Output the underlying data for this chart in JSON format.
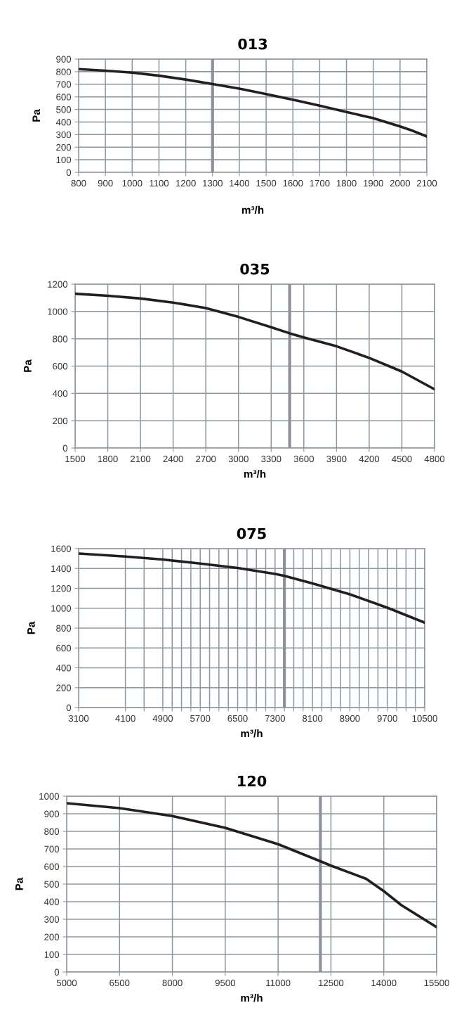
{
  "chart_data": [
    {
      "type": "line",
      "title": "013",
      "xlabel": "m³/h",
      "ylabel": "Pa",
      "grid": true,
      "x": [
        800,
        900,
        1000,
        1100,
        1200,
        1300,
        1400,
        1500,
        1600,
        1700,
        1800,
        1900,
        2000,
        2050,
        2100
      ],
      "series": [
        {
          "color": "#231f20",
          "values": [
            820,
            808,
            792,
            768,
            737,
            702,
            665,
            622,
            577,
            530,
            480,
            430,
            365,
            328,
            285
          ]
        }
      ],
      "xlim": [
        800,
        2100
      ],
      "xticks": [
        800,
        900,
        1000,
        1100,
        1200,
        1300,
        1400,
        1500,
        1600,
        1700,
        1800,
        1900,
        2000,
        2100
      ],
      "ylim": [
        0,
        900
      ],
      "yticks": [
        0,
        100,
        200,
        300,
        400,
        500,
        600,
        700,
        800,
        900
      ],
      "ref_lines": [
        {
          "axis": "x",
          "value": 1300,
          "color": "#8c9199"
        }
      ]
    },
    {
      "type": "line",
      "title": "035",
      "xlabel": "m³/h",
      "ylabel": "Pa",
      "grid": true,
      "x": [
        1500,
        1800,
        2100,
        2400,
        2700,
        3000,
        3300,
        3470,
        3600,
        3900,
        4200,
        4500,
        4800
      ],
      "series": [
        {
          "color": "#231f20",
          "values": [
            1130,
            1115,
            1095,
            1065,
            1025,
            960,
            885,
            840,
            810,
            745,
            660,
            560,
            430
          ]
        }
      ],
      "xlim": [
        1500,
        4800
      ],
      "xticks": [
        1500,
        1800,
        2100,
        2400,
        2700,
        3000,
        3300,
        3600,
        3900,
        4200,
        4500,
        4800
      ],
      "ylim": [
        0,
        1200
      ],
      "yticks": [
        0,
        200,
        400,
        600,
        800,
        1000,
        1200
      ],
      "ref_lines": [
        {
          "axis": "x",
          "value": 3470,
          "color": "#8c9199"
        }
      ]
    },
    {
      "type": "line",
      "title": "075",
      "xlabel": "m³/h",
      "ylabel": "Pa",
      "grid": true,
      "x": [
        3100,
        4100,
        4900,
        5700,
        6500,
        7300,
        7500,
        8100,
        8900,
        9700,
        10500
      ],
      "series": [
        {
          "color": "#231f20",
          "values": [
            1550,
            1520,
            1490,
            1450,
            1405,
            1345,
            1325,
            1250,
            1140,
            1005,
            855
          ]
        }
      ],
      "xlim": [
        3100,
        10500
      ],
      "xticks": [
        3100,
        4100,
        {
          "value": 4500,
          "label": null
        },
        4900,
        {
          "value": 5100,
          "label": null
        },
        {
          "value": 5300,
          "label": null
        },
        {
          "value": 5500,
          "label": null
        },
        5700,
        {
          "value": 5900,
          "label": null
        },
        {
          "value": 6100,
          "label": null
        },
        {
          "value": 6300,
          "label": null
        },
        6500,
        {
          "value": 6700,
          "label": null
        },
        {
          "value": 6900,
          "label": null
        },
        {
          "value": 7100,
          "label": null
        },
        7300,
        {
          "value": 7500,
          "label": null
        },
        {
          "value": 7700,
          "label": null
        },
        {
          "value": 7900,
          "label": null
        },
        8100,
        {
          "value": 8300,
          "label": null
        },
        {
          "value": 8500,
          "label": null
        },
        {
          "value": 8700,
          "label": null
        },
        8900,
        {
          "value": 9100,
          "label": null
        },
        {
          "value": 9300,
          "label": null
        },
        {
          "value": 9500,
          "label": null
        },
        9700,
        {
          "value": 9900,
          "label": null
        },
        {
          "value": 10100,
          "label": null
        },
        {
          "value": 10300,
          "label": null
        },
        10500
      ],
      "ylim": [
        0,
        1600
      ],
      "yticks": [
        0,
        200,
        400,
        600,
        800,
        1000,
        1200,
        1400,
        1600
      ],
      "ref_lines": [
        {
          "axis": "x",
          "value": 7500,
          "color": "#8c9199"
        }
      ]
    },
    {
      "type": "line",
      "title": "120",
      "xlabel": "m³/h",
      "ylabel": "Pa",
      "grid": true,
      "x": [
        5000,
        6500,
        8000,
        9500,
        11000,
        12200,
        12500,
        13500,
        14000,
        14500,
        15500
      ],
      "series": [
        {
          "color": "#231f20",
          "values": [
            960,
            932,
            887,
            820,
            727,
            630,
            605,
            530,
            460,
            380,
            255
          ]
        }
      ],
      "xlim": [
        5000,
        15500
      ],
      "xticks": [
        5000,
        6500,
        8000,
        9500,
        11000,
        12500,
        14000,
        15500
      ],
      "ylim": [
        0,
        1000
      ],
      "yticks": [
        0,
        100,
        200,
        300,
        400,
        500,
        600,
        700,
        800,
        900,
        1000
      ],
      "ref_lines": [
        {
          "axis": "x",
          "value": 12200,
          "color": "#8c9199"
        }
      ]
    }
  ]
}
